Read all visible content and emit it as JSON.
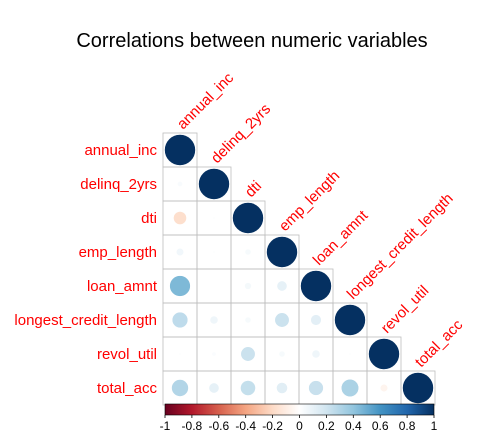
{
  "chart_data": {
    "type": "heatmap",
    "style": "correlation-matrix-lower-triangle-circles",
    "title": "Correlations between numeric variables",
    "variables": [
      "annual_inc",
      "delinq_2yrs",
      "dti",
      "emp_length",
      "loan_amnt",
      "longest_credit_length",
      "revol_util",
      "total_acc"
    ],
    "matrix": [
      [
        1.0,
        0.03,
        -0.18,
        0.06,
        0.45,
        0.26,
        0.01,
        0.3
      ],
      [
        0.03,
        1.0,
        0.01,
        0.01,
        0.0,
        0.07,
        0.02,
        0.11
      ],
      [
        -0.18,
        0.01,
        1.0,
        0.04,
        0.05,
        0.04,
        0.22,
        0.24
      ],
      [
        0.06,
        0.01,
        0.04,
        1.0,
        0.11,
        0.22,
        0.04,
        0.13
      ],
      [
        0.45,
        0.0,
        0.05,
        0.11,
        1.0,
        0.12,
        0.07,
        0.23
      ],
      [
        0.26,
        0.07,
        0.04,
        0.22,
        0.12,
        1.0,
        0.01,
        0.32
      ],
      [
        0.01,
        0.02,
        0.22,
        0.04,
        0.07,
        0.01,
        1.0,
        -0.06
      ],
      [
        0.3,
        0.11,
        0.24,
        0.13,
        0.23,
        0.32,
        -0.06,
        1.0
      ]
    ],
    "colorbar": {
      "range": [
        -1,
        1
      ],
      "ticks": [
        "-1",
        "-0.8",
        "-0.6",
        "-0.4",
        "-0.2",
        "0",
        "0.2",
        "0.4",
        "0.6",
        "0.8",
        "1"
      ]
    },
    "colors": {
      "negative_end": "#67001f",
      "neutral": "#ffffff",
      "positive_end": "#053061",
      "label": "#ff0000",
      "grid": "#bebebe"
    }
  }
}
